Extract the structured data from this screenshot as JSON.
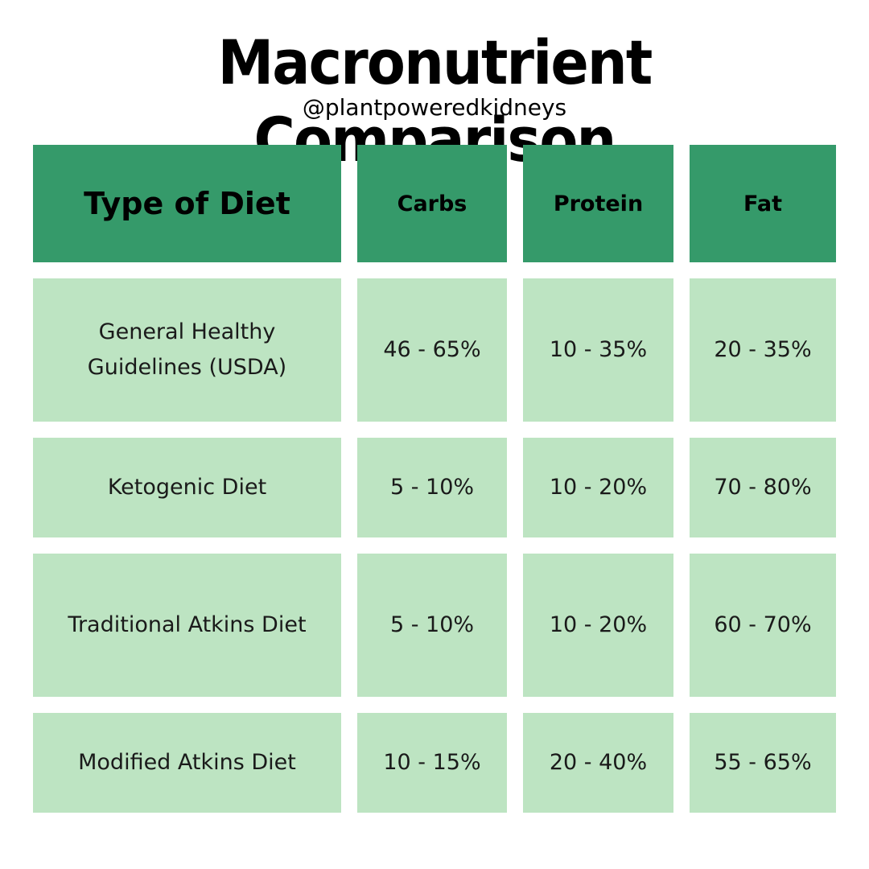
{
  "header": {
    "title": "Macronutrient Comparison",
    "handle": "@plantpoweredkidneys"
  },
  "table": {
    "columns": [
      "Type of Diet",
      "Carbs",
      "Protein",
      "Fat"
    ],
    "rows": [
      {
        "diet": "General Healthy Guidelines (USDA)",
        "carbs": "46 - 65%",
        "protein": "10 - 35%",
        "fat": "20 - 35%"
      },
      {
        "diet": "Ketogenic Diet",
        "carbs": "5 - 10%",
        "protein": "10 - 20%",
        "fat": "70 - 80%"
      },
      {
        "diet": "Traditional Atkins Diet",
        "carbs": "5 - 10%",
        "protein": "10 - 20%",
        "fat": "60 - 70%"
      },
      {
        "diet": "Modified Atkins Diet",
        "carbs": "10 - 15%",
        "protein": "20 - 40%",
        "fat": "55 - 65%"
      }
    ]
  },
  "colors": {
    "header_fill": "#359a6a",
    "body_fill": "#bde4c2",
    "background": "#ffffff",
    "text": "#000000"
  }
}
